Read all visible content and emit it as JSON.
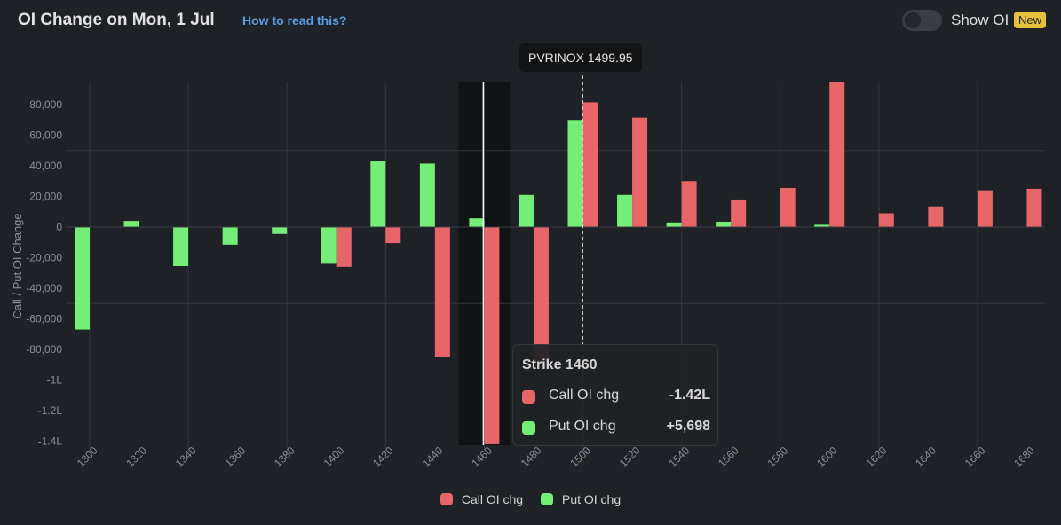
{
  "header": {
    "title": "OI Change on Mon, 1 Jul",
    "help_link": "How to read this?",
    "toggle_label": "Show OI",
    "toggle_on": false,
    "new_badge": "New"
  },
  "colors": {
    "call": "#e8666a",
    "put": "#74ee76",
    "background": "#1e2125",
    "grid": "#33383d",
    "axis_text": "#8c9096"
  },
  "price_marker": {
    "label": "PVRINOX 1499.95",
    "value": 1499.95
  },
  "tooltip": {
    "title": "Strike 1460",
    "rows": [
      {
        "label": "Call OI chg",
        "value": "-1.42L",
        "series": "call"
      },
      {
        "label": "Put OI chg",
        "value": "+5,698",
        "series": "put"
      }
    ]
  },
  "legend": {
    "items": [
      {
        "label": "Call OI chg",
        "series": "call"
      },
      {
        "label": "Put OI chg",
        "series": "put"
      }
    ]
  },
  "chart_data": {
    "type": "bar",
    "title": "OI Change on Mon, 1 Jul",
    "xlabel": "",
    "ylabel": "Call / Put OI Change",
    "categories": [
      "1300",
      "1320",
      "1340",
      "1360",
      "1380",
      "1400",
      "1420",
      "1440",
      "1460",
      "1480",
      "1500",
      "1520",
      "1540",
      "1560",
      "1580",
      "1600",
      "1620",
      "1640",
      "1660",
      "1680"
    ],
    "series": [
      {
        "name": "Put OI chg",
        "key": "put",
        "values": [
          -67000,
          4000,
          -25500,
          -11500,
          -4500,
          -24000,
          43000,
          41500,
          5698,
          21000,
          70000,
          21000,
          3000,
          3500,
          0,
          1500,
          0,
          0,
          0,
          0
        ]
      },
      {
        "name": "Call OI chg",
        "key": "call",
        "values": [
          0,
          0,
          0,
          0,
          0,
          -26000,
          -10500,
          -85000,
          -142000,
          -88000,
          81500,
          71500,
          30000,
          18000,
          25500,
          94500,
          9000,
          13500,
          24000,
          25000
        ]
      }
    ],
    "ylim": [
      -142000,
      95000
    ],
    "yticks": [
      80000,
      60000,
      40000,
      20000,
      0,
      -20000,
      -40000,
      -60000,
      -80000,
      -100000,
      -120000,
      -140000
    ],
    "ytick_labels": [
      "80,000",
      "60,000",
      "40,000",
      "20,000",
      "0",
      "-20,000",
      "-40,000",
      "-60,000",
      "-80,000",
      "-1L",
      "-1.2L",
      "-1.4L"
    ],
    "gridlines_y": [
      50000,
      0,
      -50000,
      -100000
    ],
    "highlighted_category": "1460",
    "price_line": 1499.95,
    "grid": true,
    "legend_position": "bottom-center"
  }
}
